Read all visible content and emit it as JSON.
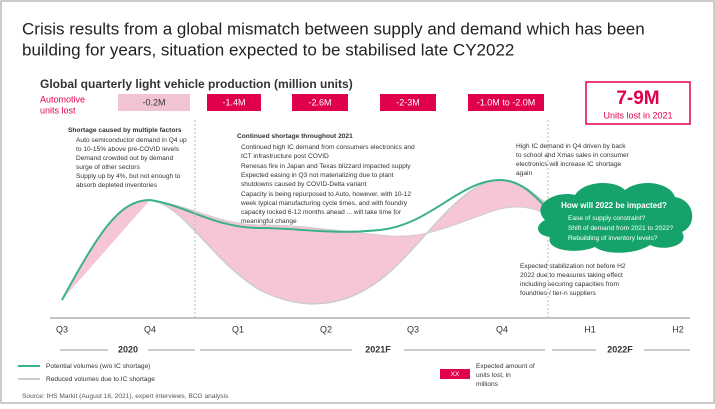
{
  "title": [
    "Crisis results from a global mismatch between supply and demand which has been",
    "building for years, situation expected to be stabilised late CY2022"
  ],
  "subtitle": "Global quarterly light vehicle production (million units)",
  "row_label": [
    "Automotive",
    "units lost"
  ],
  "losses": [
    "-0.2M",
    "-1.4M",
    "-2.6M",
    "-2-3M",
    "-1.0M to -2.0M"
  ],
  "total": {
    "value": "7-9M",
    "label": "Units lost in 2021"
  },
  "shortage": {
    "heading": "Shortage caused by multiple factors",
    "lines": [
      "Auto semiconductor demand in Q4 up",
      "to 10-15% above pre-COVID levels",
      "Demand crowded out by demand",
      "surge of other sectors",
      "Supply up by 4%, but not enough to",
      "absorb depleted inventories"
    ]
  },
  "continued": {
    "heading": "Continued shortage throughout 2021",
    "lines": [
      "Continued high IC demand from consumers electronics and",
      "ICT infrastructure post COVID",
      "Renesas fire in Japan and Texas blizzard impacted supply",
      "Expected easing in Q3 not materializing due to plant",
      "shutdowns caused by COVID-Delta variant",
      "Capacity is being repurposed to Auto, however, with 10-12",
      "week typical manufacturing cycle times, and with foundry",
      "capacity locked 6-12 months ahead ... will take time for",
      "meaningful change"
    ]
  },
  "high_ic": [
    "High IC demand in Q4 driven by back",
    "to school and Xmas sales in consumer",
    "electronics will increase IC shortage",
    "again"
  ],
  "cloud": {
    "heading": "How will 2022 be impacted?",
    "items": [
      "Ease of supply constraint?",
      "Shift of demand from 2021 to 2022?",
      "Rebuilding of inventory levels?"
    ]
  },
  "stabilization": [
    "Expected stabilization not before H2",
    "2022 due to measures taking effect",
    "including securing capacities from",
    "foundries / tier-n suppliers"
  ],
  "x_labels": [
    "Q3",
    "Q4",
    "Q1",
    "Q2",
    "Q3",
    "Q4",
    "H1",
    "H2"
  ],
  "periods": [
    "2020",
    "2021F",
    "2022F"
  ],
  "legend": [
    "Potential volumes (w/o IC shortage)",
    "Reduced volumes due to IC shortage"
  ],
  "key": {
    "sample": "XX",
    "lines": [
      "Expected amount of",
      "units lost, in",
      "millions"
    ]
  },
  "source": "Source: IHS Markit (August 16, 2021), expert interviews, BCG analysis"
}
